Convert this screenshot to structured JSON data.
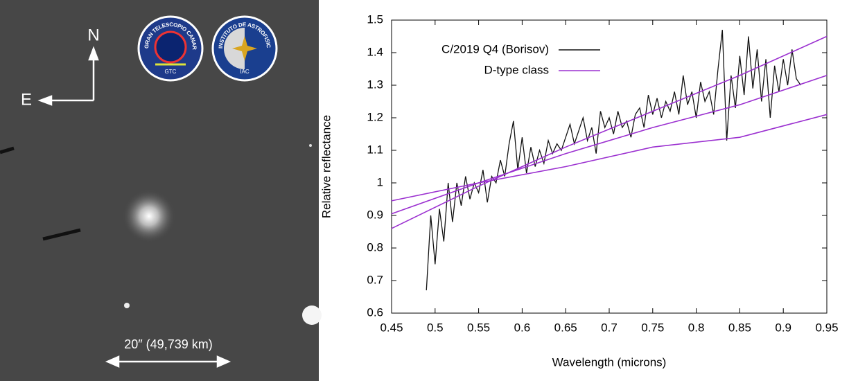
{
  "image": {
    "north": "N",
    "east": "E",
    "scale": "20″ (49,739 km)",
    "logo_gtc": {
      "ring": "GRAN TELESCOPIO CANARIAS",
      "badge": "GTC"
    },
    "logo_iac": {
      "ring": "INSTITUTO DE ASTROFISICA DE CANARIAS",
      "badge": "IAC"
    }
  },
  "chart_data": {
    "type": "line",
    "xlabel": "Wavelength (microns)",
    "ylabel": "Relative reflectance",
    "xlim": [
      0.45,
      0.95
    ],
    "ylim": [
      0.6,
      1.5
    ],
    "xticks": [
      0.45,
      0.5,
      0.55,
      0.6,
      0.65,
      0.7,
      0.75,
      0.8,
      0.85,
      0.9,
      0.95
    ],
    "yticks": [
      0.6,
      0.7,
      0.8,
      0.9,
      1,
      1.1,
      1.2,
      1.3,
      1.4,
      1.5
    ],
    "legend": "upper-left",
    "series": [
      {
        "name": "C/2019 Q4 (Borisov)",
        "color": "#111111",
        "x": [
          0.49,
          0.495,
          0.5,
          0.505,
          0.51,
          0.515,
          0.52,
          0.525,
          0.53,
          0.535,
          0.54,
          0.545,
          0.55,
          0.555,
          0.56,
          0.565,
          0.57,
          0.575,
          0.58,
          0.585,
          0.59,
          0.595,
          0.6,
          0.605,
          0.61,
          0.615,
          0.62,
          0.625,
          0.63,
          0.635,
          0.64,
          0.645,
          0.65,
          0.655,
          0.66,
          0.665,
          0.67,
          0.675,
          0.68,
          0.685,
          0.69,
          0.695,
          0.7,
          0.705,
          0.71,
          0.715,
          0.72,
          0.725,
          0.73,
          0.735,
          0.74,
          0.745,
          0.75,
          0.755,
          0.76,
          0.765,
          0.77,
          0.775,
          0.78,
          0.785,
          0.79,
          0.795,
          0.8,
          0.805,
          0.81,
          0.815,
          0.82,
          0.825,
          0.83,
          0.835,
          0.84,
          0.845,
          0.85,
          0.855,
          0.86,
          0.865,
          0.87,
          0.875,
          0.88,
          0.885,
          0.89,
          0.895,
          0.9,
          0.905,
          0.91,
          0.915,
          0.92
        ],
        "values": [
          0.67,
          0.9,
          0.75,
          0.92,
          0.82,
          1.0,
          0.88,
          1.0,
          0.93,
          1.02,
          0.95,
          1.0,
          0.97,
          1.04,
          0.94,
          1.02,
          1.0,
          1.07,
          1.02,
          1.12,
          1.19,
          1.04,
          1.14,
          1.03,
          1.11,
          1.05,
          1.1,
          1.06,
          1.13,
          1.09,
          1.12,
          1.1,
          1.14,
          1.18,
          1.12,
          1.16,
          1.2,
          1.13,
          1.17,
          1.09,
          1.22,
          1.17,
          1.2,
          1.15,
          1.22,
          1.17,
          1.19,
          1.14,
          1.21,
          1.23,
          1.17,
          1.27,
          1.21,
          1.26,
          1.2,
          1.25,
          1.22,
          1.28,
          1.21,
          1.33,
          1.24,
          1.28,
          1.2,
          1.31,
          1.25,
          1.28,
          1.21,
          1.35,
          1.47,
          1.13,
          1.33,
          1.23,
          1.39,
          1.27,
          1.45,
          1.29,
          1.41,
          1.25,
          1.38,
          1.2,
          1.36,
          1.28,
          1.38,
          1.3,
          1.41,
          1.32,
          1.3
        ]
      },
      {
        "name": "D-type class",
        "color": "#9b30d0",
        "x": [
          0.45,
          0.55,
          0.65,
          0.75,
          0.85,
          0.95
        ],
        "values": [
          0.905,
          1.0,
          1.09,
          1.17,
          1.24,
          1.33
        ]
      },
      {
        "color": "#9b30d0",
        "x": [
          0.45,
          0.55,
          0.65,
          0.75,
          0.85,
          0.95
        ],
        "values": [
          0.86,
          0.99,
          1.11,
          1.22,
          1.33,
          1.45
        ]
      },
      {
        "color": "#9b30d0",
        "x": [
          0.45,
          0.55,
          0.65,
          0.75,
          0.85,
          0.95
        ],
        "values": [
          0.945,
          1.0,
          1.05,
          1.11,
          1.14,
          1.21
        ]
      }
    ]
  }
}
